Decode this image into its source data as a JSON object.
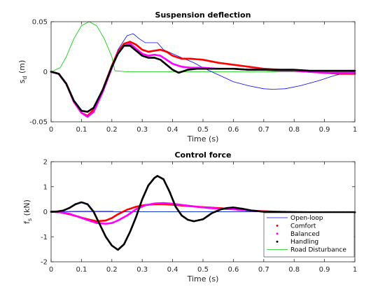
{
  "chart_data": [
    {
      "type": "line",
      "title": "Suspension deflection",
      "xlabel": "Time (s)",
      "ylabel_main": "s",
      "ylabel_sub": "d",
      "ylabel_unit": " (m)",
      "xlim": [
        0,
        1
      ],
      "ylim": [
        -0.05,
        0.05
      ],
      "xticks": [
        0,
        0.1,
        0.2,
        0.3,
        0.4,
        0.5,
        0.6,
        0.7,
        0.8,
        0.9,
        1
      ],
      "xtick_labels": [
        "0",
        "0.1",
        "0.2",
        "0.3",
        "0.4",
        "0.5",
        "0.6",
        "0.7",
        "0.8",
        "0.9",
        "1"
      ],
      "yticks": [
        -0.05,
        0,
        0.05
      ],
      "ytick_labels": [
        "-0.05",
        "0",
        "0.05"
      ],
      "grid": false,
      "series": [
        {
          "name": "Open-loop",
          "color": "#0000ff",
          "style": "line",
          "x": [
            0,
            0.025,
            0.05,
            0.075,
            0.1,
            0.12,
            0.14,
            0.17,
            0.2,
            0.22,
            0.25,
            0.27,
            0.29,
            0.31,
            0.33,
            0.35,
            0.37,
            0.4,
            0.43,
            0.47,
            0.5,
            0.55,
            0.6,
            0.65,
            0.7,
            0.73,
            0.77,
            0.82,
            0.88,
            0.93,
            0.97,
            1
          ],
          "y": [
            0,
            -0.002,
            -0.013,
            -0.03,
            -0.041,
            -0.044,
            -0.04,
            -0.02,
            0.005,
            0.022,
            0.036,
            0.038,
            0.033,
            0.029,
            0.029,
            0.029,
            0.022,
            0.018,
            0.014,
            0.009,
            0.004,
            -0.003,
            -0.01,
            -0.014,
            -0.017,
            -0.0175,
            -0.017,
            -0.014,
            -0.009,
            -0.004,
            -0.001,
            0
          ]
        },
        {
          "name": "Comfort",
          "color": "#ff0000",
          "style": "dots",
          "x": [
            0,
            0.025,
            0.05,
            0.075,
            0.1,
            0.12,
            0.14,
            0.17,
            0.2,
            0.22,
            0.24,
            0.26,
            0.28,
            0.3,
            0.32,
            0.34,
            0.36,
            0.38,
            0.4,
            0.43,
            0.46,
            0.5,
            0.55,
            0.6,
            0.65,
            0.7,
            0.75,
            0.8,
            0.85,
            0.9,
            0.95,
            1
          ],
          "y": [
            0,
            -0.002,
            -0.012,
            -0.03,
            -0.041,
            -0.044,
            -0.038,
            -0.018,
            0.006,
            0.02,
            0.028,
            0.03,
            0.027,
            0.022,
            0.02,
            0.021,
            0.022,
            0.02,
            0.016,
            0.013,
            0.013,
            0.012,
            0.009,
            0.007,
            0.005,
            0.003,
            0.002,
            0.001,
            0,
            -0.001,
            -0.002,
            -0.002
          ]
        },
        {
          "name": "Balanced",
          "color": "#ff00ff",
          "style": "dots",
          "x": [
            0,
            0.025,
            0.05,
            0.075,
            0.1,
            0.12,
            0.14,
            0.17,
            0.2,
            0.22,
            0.24,
            0.26,
            0.28,
            0.3,
            0.32,
            0.34,
            0.36,
            0.38,
            0.4,
            0.43,
            0.46,
            0.5,
            0.55,
            0.6,
            0.65,
            0.7,
            0.75,
            0.8,
            0.85,
            0.9,
            0.95,
            1
          ],
          "y": [
            0,
            -0.002,
            -0.012,
            -0.03,
            -0.041,
            -0.045,
            -0.04,
            -0.02,
            0.004,
            0.019,
            0.026,
            0.028,
            0.023,
            0.018,
            0.016,
            0.017,
            0.016,
            0.012,
            0.008,
            0.005,
            0.004,
            0.004,
            0.003,
            0.003,
            0.002,
            0.002,
            0.001,
            0.001,
            0,
            -0.001,
            -0.001,
            -0.001
          ]
        },
        {
          "name": "Handling",
          "color": "#000000",
          "style": "dots",
          "x": [
            0,
            0.025,
            0.05,
            0.075,
            0.1,
            0.12,
            0.14,
            0.17,
            0.2,
            0.22,
            0.24,
            0.26,
            0.28,
            0.3,
            0.32,
            0.34,
            0.36,
            0.38,
            0.4,
            0.42,
            0.45,
            0.48,
            0.52,
            0.56,
            0.6,
            0.65,
            0.7,
            0.75,
            0.8,
            0.85,
            0.9,
            0.95,
            1
          ],
          "y": [
            0,
            -0.002,
            -0.012,
            -0.029,
            -0.039,
            -0.04,
            -0.036,
            -0.018,
            0.005,
            0.018,
            0.026,
            0.026,
            0.021,
            0.016,
            0.014,
            0.014,
            0.012,
            0.007,
            0.002,
            -0.001,
            0.002,
            0.003,
            0.003,
            0.003,
            0.003,
            0.002,
            0.002,
            0.002,
            0.002,
            0.001,
            0.001,
            0.001,
            0.001
          ]
        },
        {
          "name": "Road Disturbance",
          "color": "#00cc00",
          "style": "line",
          "x": [
            0,
            0.03,
            0.05,
            0.075,
            0.1,
            0.125,
            0.15,
            0.175,
            0.2,
            0.21,
            0.25,
            0.5,
            0.75,
            1
          ],
          "y": [
            0,
            0.004,
            0.015,
            0.033,
            0.046,
            0.05,
            0.046,
            0.033,
            0.015,
            0.001,
            0,
            0,
            0,
            0
          ]
        }
      ]
    },
    {
      "type": "line",
      "title": "Control force",
      "xlabel": "Time (s)",
      "ylabel_main": "f",
      "ylabel_sub": "s",
      "ylabel_unit": " (kN)",
      "xlim": [
        0,
        1
      ],
      "ylim": [
        -2,
        2
      ],
      "xticks": [
        0,
        0.1,
        0.2,
        0.3,
        0.4,
        0.5,
        0.6,
        0.7,
        0.8,
        0.9,
        1
      ],
      "xtick_labels": [
        "0",
        "0.1",
        "0.2",
        "0.3",
        "0.4",
        "0.5",
        "0.6",
        "0.7",
        "0.8",
        "0.9",
        "1"
      ],
      "yticks": [
        -2,
        -1,
        0,
        1,
        2
      ],
      "ytick_labels": [
        "-2",
        "-1",
        "0",
        "1",
        "2"
      ],
      "grid": false,
      "legend": {
        "position": "bottom-right",
        "entries": [
          "Open-loop",
          "Comfort",
          "Balanced",
          "Handling",
          "Road Disturbance"
        ]
      },
      "series": [
        {
          "name": "Open-loop",
          "color": "#0000ff",
          "style": "line",
          "x": [
            0,
            0.5,
            1
          ],
          "y": [
            0,
            0,
            0
          ]
        },
        {
          "name": "Comfort",
          "color": "#ff0000",
          "style": "dots",
          "x": [
            0,
            0.03,
            0.06,
            0.09,
            0.12,
            0.15,
            0.18,
            0.2,
            0.22,
            0.25,
            0.28,
            0.31,
            0.34,
            0.37,
            0.4,
            0.44,
            0.48,
            0.52,
            0.56,
            0.6,
            0.65,
            0.7,
            0.75,
            0.8,
            0.85,
            0.9,
            0.95,
            1
          ],
          "y": [
            0,
            -0.02,
            -0.1,
            -0.2,
            -0.3,
            -0.38,
            -0.35,
            -0.25,
            -0.1,
            0.08,
            0.2,
            0.27,
            0.3,
            0.3,
            0.28,
            0.24,
            0.2,
            0.17,
            0.14,
            0.1,
            0.05,
            0.02,
            0,
            -0.01,
            -0.02,
            -0.02,
            -0.02,
            -0.02
          ]
        },
        {
          "name": "Balanced",
          "color": "#ff00ff",
          "style": "dots",
          "x": [
            0,
            0.03,
            0.06,
            0.09,
            0.12,
            0.15,
            0.18,
            0.2,
            0.22,
            0.25,
            0.28,
            0.31,
            0.34,
            0.37,
            0.4,
            0.44,
            0.48,
            0.52,
            0.56,
            0.6,
            0.65,
            0.7,
            0.75,
            0.8,
            0.85,
            0.9,
            0.95,
            1
          ],
          "y": [
            0,
            -0.02,
            -0.08,
            -0.2,
            -0.33,
            -0.45,
            -0.48,
            -0.45,
            -0.35,
            -0.15,
            0.1,
            0.26,
            0.33,
            0.35,
            0.32,
            0.26,
            0.2,
            0.15,
            0.12,
            0.1,
            0.05,
            0.01,
            -0.01,
            -0.02,
            -0.02,
            -0.02,
            -0.02,
            -0.02
          ]
        },
        {
          "name": "Handling",
          "color": "#000000",
          "style": "dots",
          "x": [
            0,
            0.02,
            0.04,
            0.06,
            0.08,
            0.1,
            0.12,
            0.14,
            0.16,
            0.18,
            0.2,
            0.22,
            0.24,
            0.26,
            0.28,
            0.3,
            0.32,
            0.34,
            0.35,
            0.37,
            0.39,
            0.41,
            0.43,
            0.45,
            0.47,
            0.5,
            0.53,
            0.56,
            0.58,
            0.6,
            0.63,
            0.66,
            0.7,
            0.75,
            0.8,
            0.85,
            0.9,
            0.95,
            1
          ],
          "y": [
            0,
            0.01,
            0.05,
            0.15,
            0.3,
            0.38,
            0.3,
            0,
            -0.5,
            -1.0,
            -1.35,
            -1.52,
            -1.3,
            -0.8,
            -0.2,
            0.5,
            1.05,
            1.35,
            1.43,
            1.3,
            0.8,
            0.2,
            -0.15,
            -0.32,
            -0.38,
            -0.3,
            -0.05,
            0.1,
            0.15,
            0.17,
            0.12,
            0.05,
            0,
            -0.01,
            -0.02,
            -0.02,
            -0.02,
            -0.02,
            -0.02
          ]
        },
        {
          "name": "Road Disturbance",
          "color": "#00cc00",
          "style": "line",
          "x": [
            0,
            0.1,
            0.2,
            0.21,
            0.3,
            0.5,
            0.7,
            1
          ],
          "y": [
            0,
            0.03,
            0.03,
            0,
            0,
            0,
            0,
            0
          ]
        }
      ]
    }
  ]
}
